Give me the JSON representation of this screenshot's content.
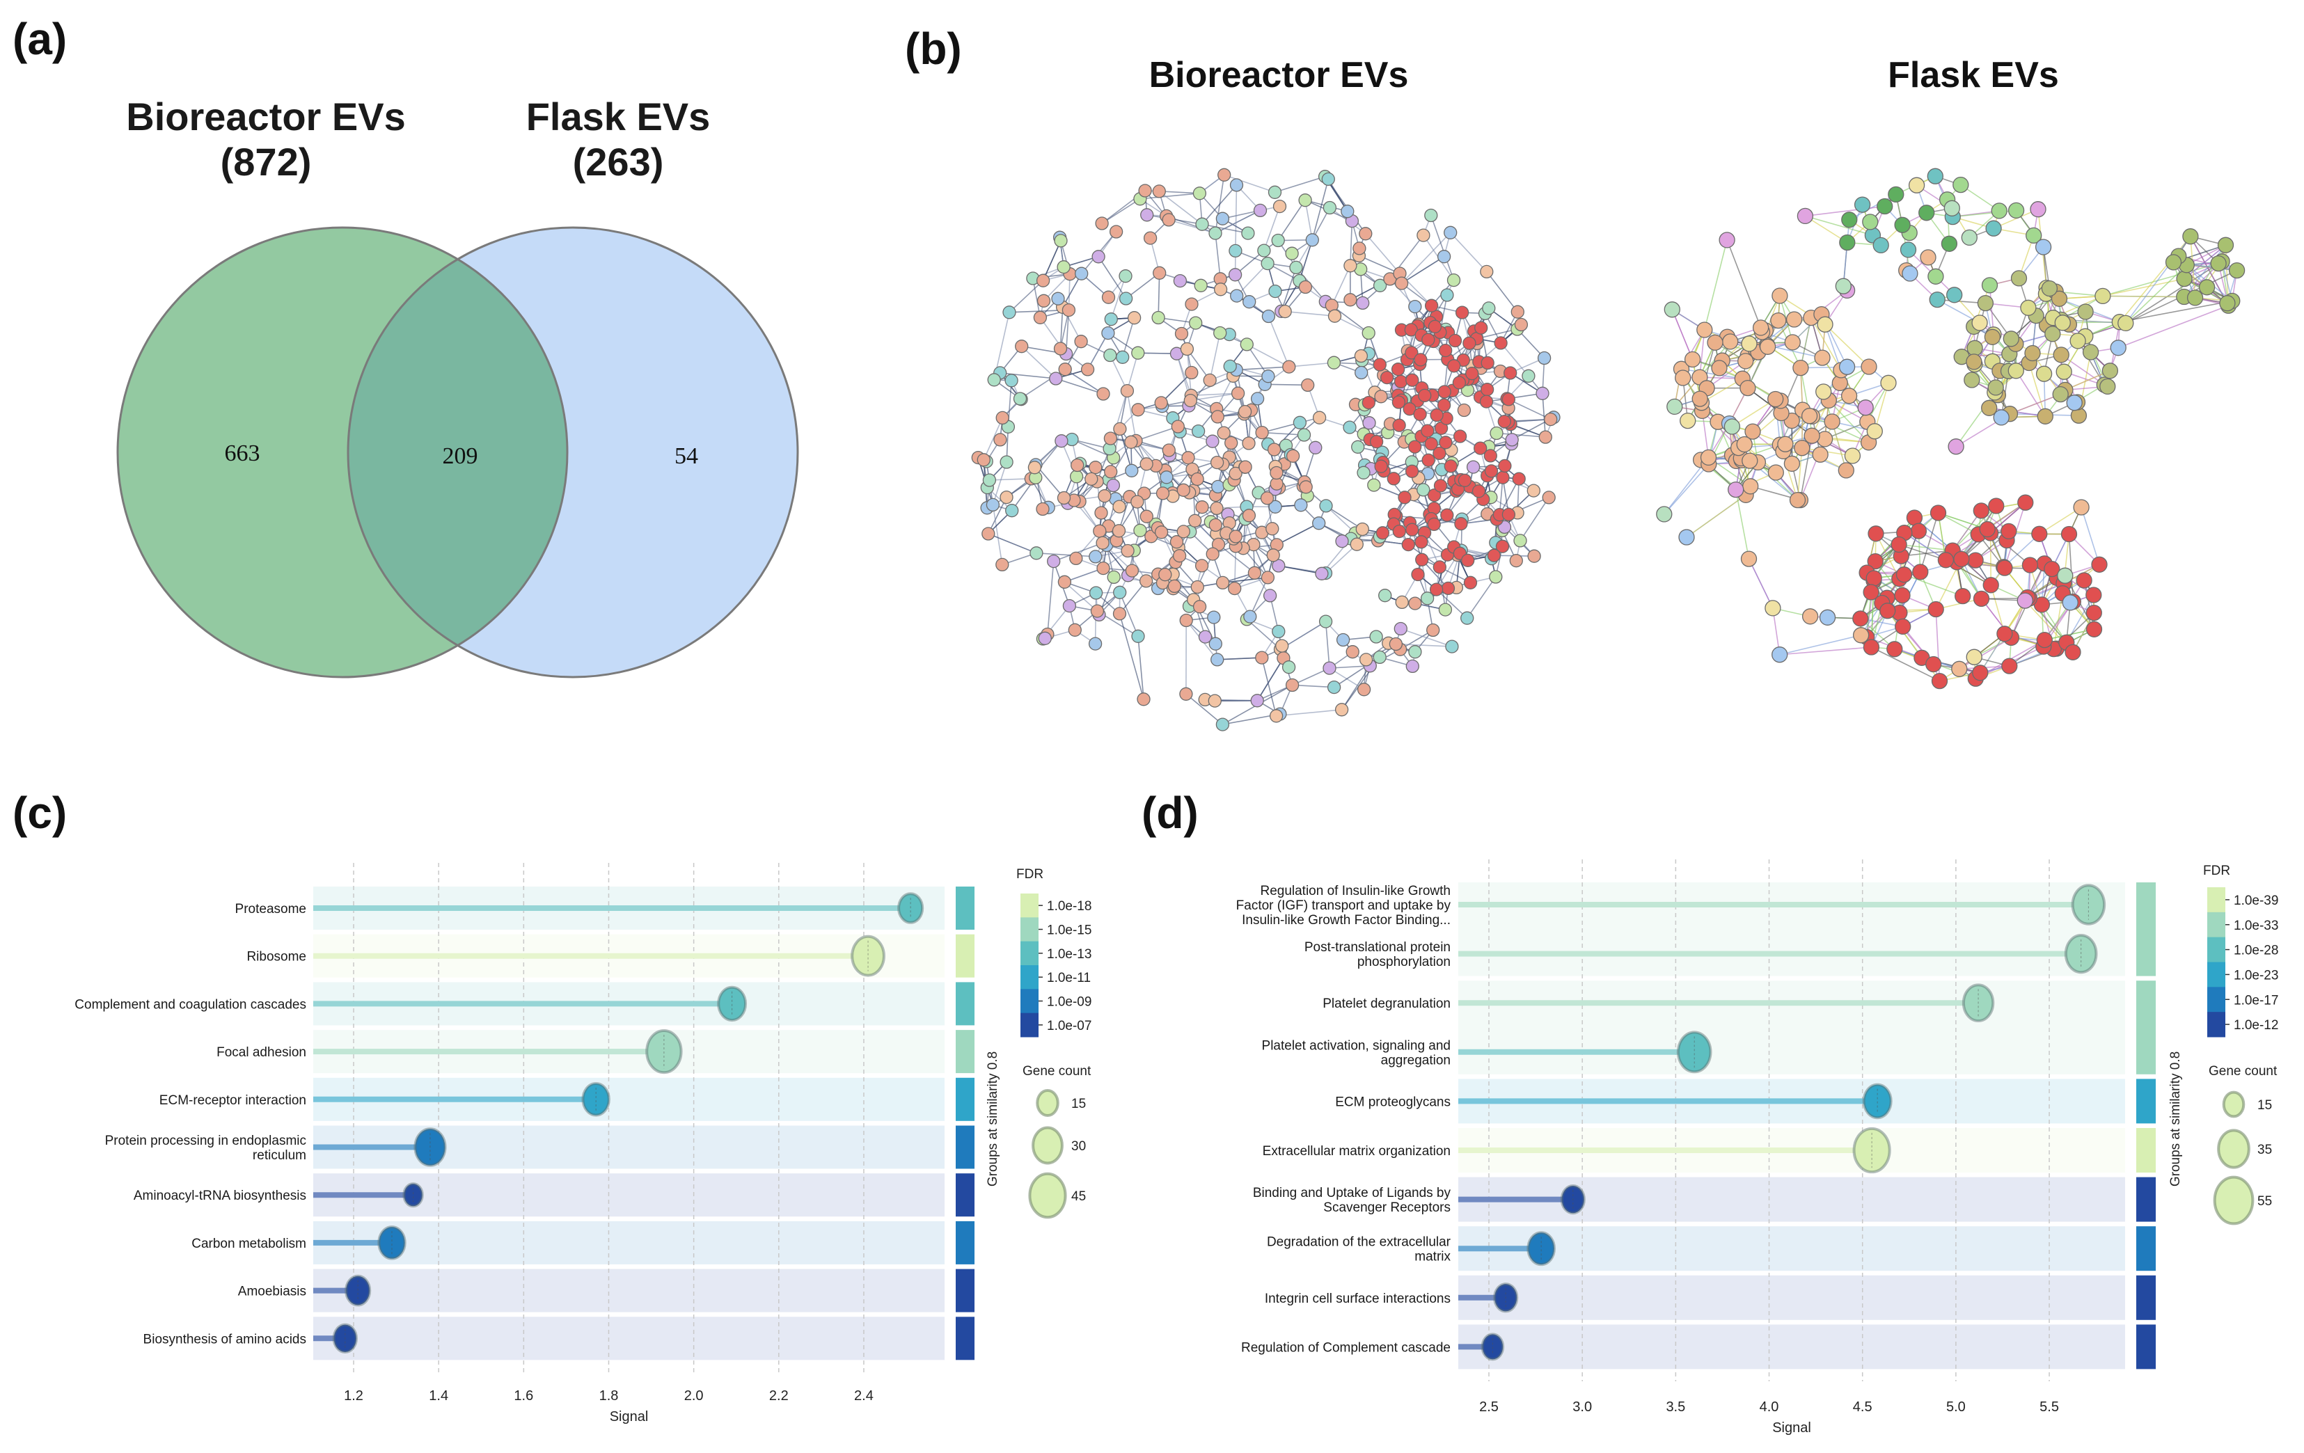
{
  "panel_labels": {
    "a": "(a)",
    "b": "(b)",
    "c": "(c)",
    "d": "(d)"
  },
  "venn": {
    "left_title": "Bioreactor EVs",
    "left_count": "(872)",
    "right_title": "Flask EVs",
    "right_count": "(263)",
    "only_left": "663",
    "overlap": "209",
    "only_right": "54",
    "colors": {
      "left": "#93c9a1",
      "right": "#c5dbf8",
      "overlap": "#7ab7a0",
      "stroke": "#7a7a7a"
    }
  },
  "network": {
    "left_title": "Bioreactor EVs",
    "right_title": "Flask EVs"
  },
  "chart_data": [
    {
      "type": "lollipop",
      "panel": "c",
      "xlabel": "Signal",
      "xlim": [
        1.105,
        2.59
      ],
      "xticks": [
        1.2,
        1.4,
        1.6,
        1.8,
        2.0,
        2.2,
        2.4
      ],
      "xtick_labels": [
        "1.2",
        "1.4",
        "1.6",
        "1.8",
        "2.0",
        "2.2",
        "2.4"
      ],
      "group_axis_label": "Groups at similarity 0.8",
      "fdr_legend": {
        "title": "FDR",
        "labels": [
          "1.0e-18",
          "1.0e-15",
          "1.0e-13",
          "1.0e-11",
          "1.0e-09",
          "1.0e-07"
        ],
        "colors": [
          "#d8efb3",
          "#9fd8bf",
          "#5dbfc0",
          "#2fa5c9",
          "#1f7bbd",
          "#2349a0"
        ]
      },
      "size_legend": {
        "title": "Gene count",
        "values": [
          15,
          30,
          45
        ],
        "labels": [
          "15",
          "30",
          "45"
        ]
      },
      "rows": [
        {
          "term": "Proteasome",
          "lines": [
            "Proteasome"
          ],
          "signal": 2.51,
          "color": "#5dbfc0",
          "gene_count": 20
        },
        {
          "term": "Ribosome",
          "lines": [
            "Ribosome"
          ],
          "signal": 2.41,
          "color": "#d8efb3",
          "gene_count": 36
        },
        {
          "term": "Complement and coagulation cascades",
          "lines": [
            "Complement and coagulation cascades"
          ],
          "signal": 2.09,
          "color": "#5dbfc0",
          "gene_count": 26
        },
        {
          "term": "Focal adhesion",
          "lines": [
            "Focal adhesion"
          ],
          "signal": 1.93,
          "color": "#9fd8bf",
          "gene_count": 42
        },
        {
          "term": "ECM-receptor interaction",
          "lines": [
            "ECM-receptor interaction"
          ],
          "signal": 1.77,
          "color": "#2fa5c9",
          "gene_count": 24
        },
        {
          "term": "Protein processing in endoplasmic reticulum",
          "lines": [
            "Protein processing in endoplasmic",
            "reticulum"
          ],
          "signal": 1.38,
          "color": "#1f7bbd",
          "gene_count": 32
        },
        {
          "term": "Aminoacyl-tRNA biosynthesis",
          "lines": [
            "Aminoacyl-tRNA biosynthesis"
          ],
          "signal": 1.34,
          "color": "#2349a0",
          "gene_count": 12
        },
        {
          "term": "Carbon metabolism",
          "lines": [
            "Carbon metabolism"
          ],
          "signal": 1.29,
          "color": "#1f7bbd",
          "gene_count": 24
        },
        {
          "term": "Amoebiasis",
          "lines": [
            "Amoebiasis"
          ],
          "signal": 1.21,
          "color": "#2349a0",
          "gene_count": 20
        },
        {
          "term": "Biosynthesis of amino acids",
          "lines": [
            "Biosynthesis of amino acids"
          ],
          "signal": 1.18,
          "color": "#2349a0",
          "gene_count": 18
        }
      ],
      "groups": [
        {
          "rows": [
            0
          ],
          "color": "#5dbfc0"
        },
        {
          "rows": [
            1
          ],
          "color": "#d8efb3"
        },
        {
          "rows": [
            2
          ],
          "color": "#5dbfc0"
        },
        {
          "rows": [
            3
          ],
          "color": "#9fd8bf"
        },
        {
          "rows": [
            4
          ],
          "color": "#2fa5c9"
        },
        {
          "rows": [
            5
          ],
          "color": "#1f7bbd"
        },
        {
          "rows": [
            6
          ],
          "color": "#2349a0"
        },
        {
          "rows": [
            7
          ],
          "color": "#1f7bbd"
        },
        {
          "rows": [
            8
          ],
          "color": "#2349a0"
        },
        {
          "rows": [
            9
          ],
          "color": "#2349a0"
        }
      ]
    },
    {
      "type": "lollipop",
      "panel": "d",
      "xlabel": "Signal",
      "xlim": [
        2.336,
        5.906
      ],
      "xticks": [
        2.5,
        3.0,
        3.5,
        4.0,
        4.5,
        5.0,
        5.5
      ],
      "xtick_labels": [
        "2.5",
        "3.0",
        "3.5",
        "4.0",
        "4.5",
        "5.0",
        "5.5"
      ],
      "group_axis_label": "Groups at similarity 0.8",
      "fdr_legend": {
        "title": "FDR",
        "labels": [
          "1.0e-39",
          "1.0e-33",
          "1.0e-28",
          "1.0e-23",
          "1.0e-17",
          "1.0e-12"
        ],
        "colors": [
          "#d8efb3",
          "#9fd8bf",
          "#5dbfc0",
          "#2fa5c9",
          "#1f7bbd",
          "#2349a0"
        ]
      },
      "size_legend": {
        "title": "Gene count",
        "values": [
          15,
          35,
          55
        ],
        "labels": [
          "15",
          "35",
          "55"
        ]
      },
      "rows": [
        {
          "term": "Regulation of Insulin-like Growth Factor (IGF) transport and uptake by Insulin-like Growth Factor Binding...",
          "lines": [
            "Regulation of Insulin-like Growth",
            "Factor (IGF) transport and uptake by",
            "Insulin-like Growth Factor Binding..."
          ],
          "signal": 5.71,
          "color": "#9fd8bf",
          "gene_count": 38
        },
        {
          "term": "Post-translational protein phosphorylation",
          "lines": [
            "Post-translational protein",
            "phosphorylation"
          ],
          "signal": 5.67,
          "color": "#9fd8bf",
          "gene_count": 35
        },
        {
          "term": "Platelet degranulation",
          "lines": [
            "Platelet degranulation"
          ],
          "signal": 5.12,
          "color": "#9fd8bf",
          "gene_count": 33
        },
        {
          "term": "Platelet activation, signaling and aggregation",
          "lines": [
            "Platelet activation, signaling and",
            "aggregation"
          ],
          "signal": 3.6,
          "color": "#5dbfc0",
          "gene_count": 40
        },
        {
          "term": "ECM proteoglycans",
          "lines": [
            "ECM proteoglycans"
          ],
          "signal": 4.58,
          "color": "#2fa5c9",
          "gene_count": 28
        },
        {
          "term": "Extracellular matrix organization",
          "lines": [
            "Extracellular matrix organization"
          ],
          "signal": 4.55,
          "color": "#d8efb3",
          "gene_count": 48
        },
        {
          "term": "Binding and Uptake of Ligands by Scavenger Receptors",
          "lines": [
            "Binding and Uptake of Ligands by",
            "Scavenger Receptors"
          ],
          "signal": 2.95,
          "color": "#2349a0",
          "gene_count": 19
        },
        {
          "term": "Degradation of the extracellular matrix",
          "lines": [
            "Degradation of the extracellular",
            "matrix"
          ],
          "signal": 2.78,
          "color": "#1f7bbd",
          "gene_count": 26
        },
        {
          "term": "Integrin cell surface interactions",
          "lines": [
            "Integrin cell surface interactions"
          ],
          "signal": 2.59,
          "color": "#2349a0",
          "gene_count": 19
        },
        {
          "term": "Regulation of Complement cascade",
          "lines": [
            "Regulation of Complement cascade"
          ],
          "signal": 2.52,
          "color": "#2349a0",
          "gene_count": 16
        }
      ],
      "groups": [
        {
          "rows": [
            0,
            1
          ],
          "color": "#9fd8bf"
        },
        {
          "rows": [
            2,
            3
          ],
          "color": "#9fd8bf"
        },
        {
          "rows": [
            4
          ],
          "color": "#2fa5c9"
        },
        {
          "rows": [
            5
          ],
          "color": "#d8efb3"
        },
        {
          "rows": [
            6
          ],
          "color": "#2349a0"
        },
        {
          "rows": [
            7
          ],
          "color": "#1f7bbd"
        },
        {
          "rows": [
            8
          ],
          "color": "#2349a0"
        },
        {
          "rows": [
            9
          ],
          "color": "#2349a0"
        }
      ]
    }
  ]
}
